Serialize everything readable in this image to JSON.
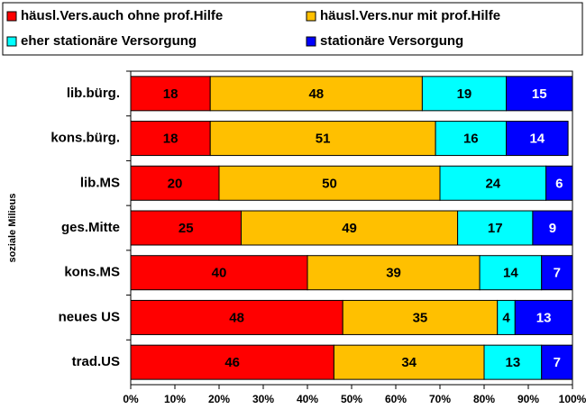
{
  "chart_data": {
    "type": "stacked-barh",
    "ylabel": "soziale Milieus",
    "categories": [
      "lib.bürg.",
      "kons.bürg.",
      "lib.MS",
      "ges.Mitte",
      "kons.MS",
      "neues US",
      "trad.US"
    ],
    "series": [
      {
        "name": "häusl.Vers.auch ohne prof.Hilfe",
        "color": "#ff0000",
        "values": [
          18,
          18,
          20,
          25,
          40,
          48,
          46
        ]
      },
      {
        "name": "häusl.Vers.nur mit prof.Hilfe",
        "color": "#ffc000",
        "values": [
          48,
          51,
          50,
          49,
          39,
          35,
          34
        ]
      },
      {
        "name": "eher stationäre Versorgung",
        "color": "#00ffff",
        "values": [
          19,
          16,
          24,
          17,
          14,
          4,
          13
        ]
      },
      {
        "name": "stationäre Versorgung",
        "color": "#0000ff",
        "values": [
          15,
          14,
          6,
          9,
          7,
          13,
          7
        ]
      }
    ],
    "xlim": [
      0,
      100
    ],
    "xticks": [
      {
        "value": 0,
        "label": "0%"
      },
      {
        "value": 10,
        "label": "10%"
      },
      {
        "value": 20,
        "label": "20%"
      },
      {
        "value": 30,
        "label": "30%"
      },
      {
        "value": 40,
        "label": "40%"
      },
      {
        "value": 50,
        "label": "50%"
      },
      {
        "value": 60,
        "label": "60%"
      },
      {
        "value": 70,
        "label": "70%"
      },
      {
        "value": 80,
        "label": "80%"
      },
      {
        "value": 90,
        "label": "90%"
      },
      {
        "value": 100,
        "label": "100%"
      }
    ],
    "legend": "top"
  }
}
